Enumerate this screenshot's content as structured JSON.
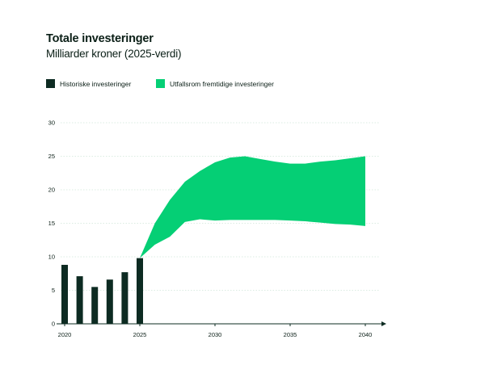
{
  "header": {
    "title": "Totale investeringer",
    "subtitle": "Milliarder kroner (2025-verdi)"
  },
  "legend": {
    "historical_label": "Historiske investeringer",
    "range_label": "Utfallsrom fremtidige investeringer"
  },
  "colors": {
    "historical": "#0d2b22",
    "range": "#05cf75",
    "text": "#0b1f17",
    "grid": "#cfe6d9"
  },
  "chart_data": {
    "type": "bar",
    "title": "Totale investeringer",
    "subtitle": "Milliarder kroner (2025-verdi)",
    "xlabel": "",
    "ylabel": "",
    "xlim": [
      2020,
      2041
    ],
    "ylim": [
      0,
      30
    ],
    "yticks": [
      0,
      5,
      10,
      15,
      20,
      25,
      30
    ],
    "xticks": [
      2020,
      2025,
      2030,
      2035,
      2040
    ],
    "grid": true,
    "legend_position": "top-left",
    "bars": {
      "name": "Historiske investeringer",
      "x": [
        2020,
        2021,
        2022,
        2023,
        2024,
        2025
      ],
      "values": [
        8.8,
        7.1,
        5.5,
        6.6,
        7.7,
        9.8
      ]
    },
    "band": {
      "name": "Utfallsrom fremtidige investeringer",
      "x": [
        2025,
        2026,
        2027,
        2028,
        2029,
        2030,
        2031,
        2032,
        2033,
        2034,
        2035,
        2036,
        2037,
        2038,
        2039,
        2040
      ],
      "upper": [
        9.8,
        15.0,
        18.5,
        21.2,
        22.8,
        24.1,
        24.8,
        25.0,
        24.6,
        24.2,
        23.9,
        23.9,
        24.2,
        24.4,
        24.7,
        25.0
      ],
      "lower": [
        9.8,
        11.8,
        13.0,
        15.2,
        15.6,
        15.4,
        15.5,
        15.5,
        15.5,
        15.5,
        15.4,
        15.3,
        15.1,
        14.9,
        14.8,
        14.6
      ]
    }
  }
}
